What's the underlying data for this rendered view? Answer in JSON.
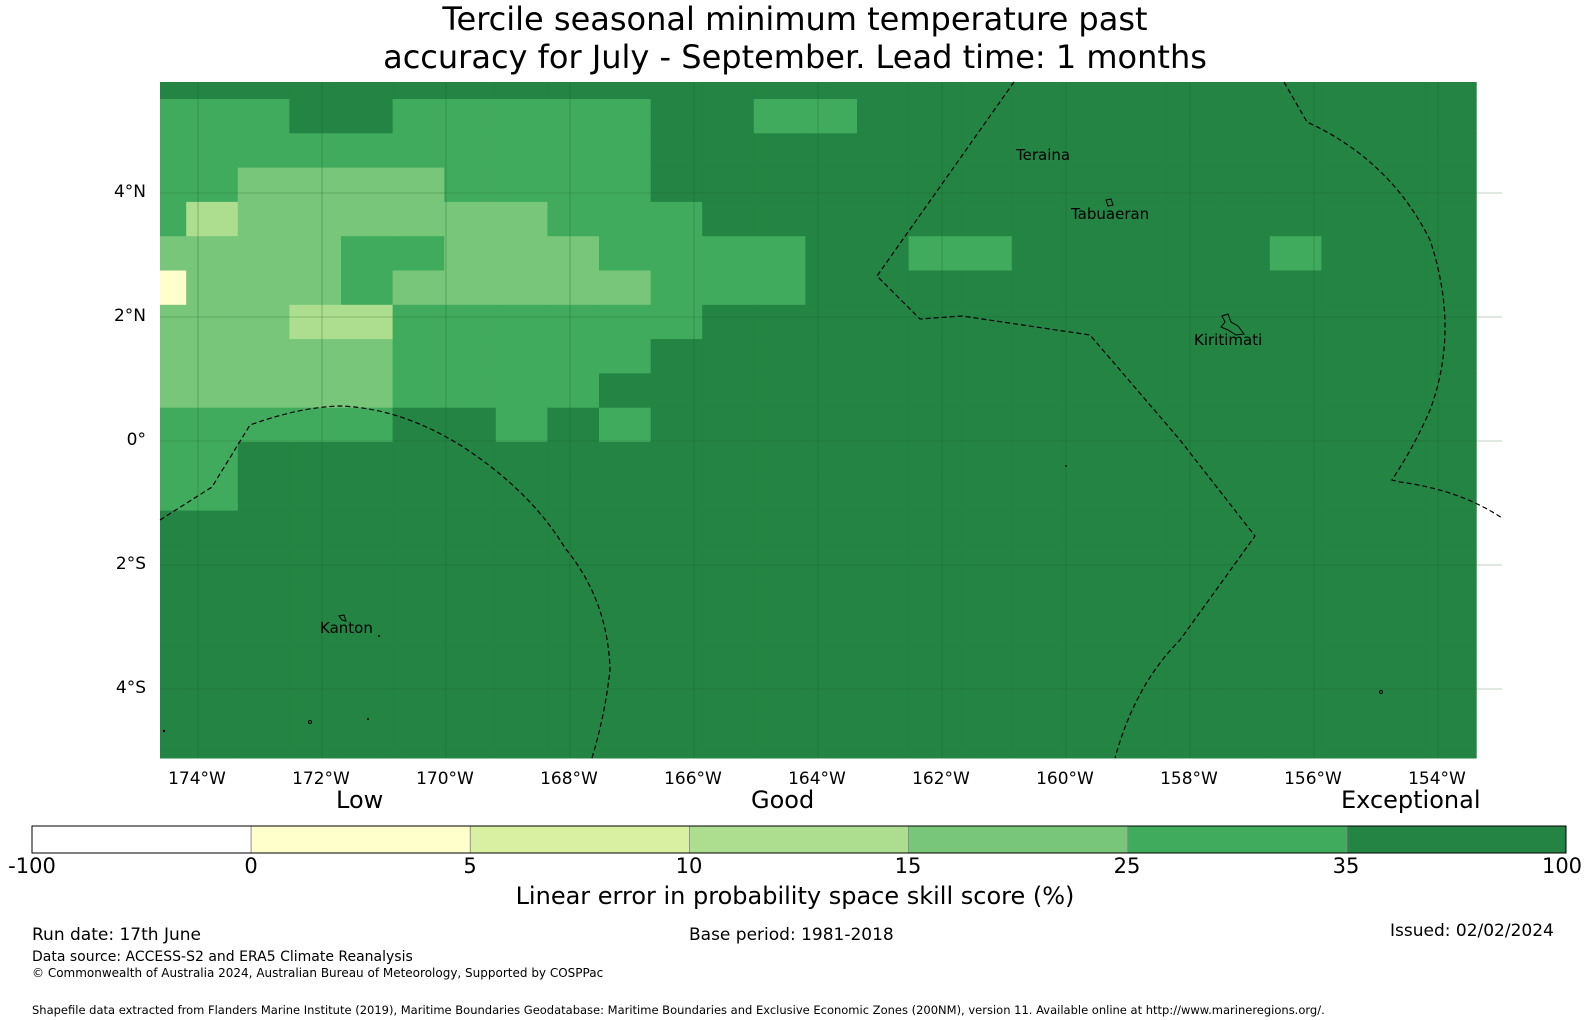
{
  "title_line1": "Tercile seasonal minimum temperature past",
  "title_line2": "accuracy for July - September. Lead time: 1 months",
  "map": {
    "lat_labels": [
      "4°N",
      "2°N",
      "0°",
      "2°S",
      "4°S"
    ],
    "lon_labels": [
      "174°W",
      "172°W",
      "170°W",
      "168°W",
      "166°W",
      "164°W",
      "162°W",
      "160°W",
      "158°W",
      "156°W",
      "154°W"
    ],
    "places": [
      "Teraina",
      "Tabuaeran",
      "Kiritimati",
      "Kanton"
    ],
    "skill_categories": {
      "0": "#ffffff",
      "1": "#ffffcc",
      "2": "#d9f0a3",
      "3": "#addd8e",
      "4": "#78c679",
      "5": "#41ab5d",
      "6": "#238443"
    },
    "grid_rows": [
      "66666666666666666666666666",
      "55566555556655666666666666",
      "55555555556666666666666666",
      "55444455556666666666666666",
      "53444444555666666666666666",
      "44445544455556655666665666",
      "14445444445556666666666666",
      "44433555555666666666666666",
      "44444555556666666666666666",
      "44444555566666666666666666",
      "55555665656666666666666666",
      "55666666666666666666666666",
      "55666666666666666666666666",
      "66666666666666666666666666",
      "66666666666666666666666666",
      "66666666666666666666666666",
      "66666666666666666666666666",
      "66666666666666666666666666",
      "66666666666666666666666666",
      "66666666666666666666666666",
      "66666666666666666666666666",
      "66666666666666666666666666",
      "66666666666666666666666666",
      "66666666666666666666666666",
      "66666666666666666666666666",
      "66666666666666666666666666",
      "66666666666666666666666666",
      "66666666666666666666666666",
      "66666666666666666666666666",
      "66666666666666666666666666"
    ]
  },
  "colorbar": {
    "category_labels": [
      "Low",
      "Good",
      "Exceptional"
    ],
    "ticks": [
      "-100",
      "0",
      "5",
      "10",
      "15",
      "25",
      "35",
      "100"
    ],
    "colors": [
      "#ffffff",
      "#ffffcc",
      "#d9f0a3",
      "#addd8e",
      "#78c679",
      "#41ab5d",
      "#238443"
    ],
    "title": "Linear error in probability space skill score (%)"
  },
  "footer": {
    "run_date": "Run date: 17th June",
    "base_period": "Base period: 1981-2018",
    "issued": "Issued: 02/02/2024",
    "data_source": "Data source: ACCESS-S2 and ERA5 Climate Reanalysis",
    "copyright": "© Commonwealth of Australia 2024, Australian Bureau of Meteorology, Supported by COSPPac",
    "shapefile": "Shapefile data extracted from Flanders Marine Institute (2019), Maritime Boundaries Geodatabase: Maritime Boundaries and Exclusive Economic Zones (200NM), version 11. Available online at http://www.marineregions.org/."
  }
}
